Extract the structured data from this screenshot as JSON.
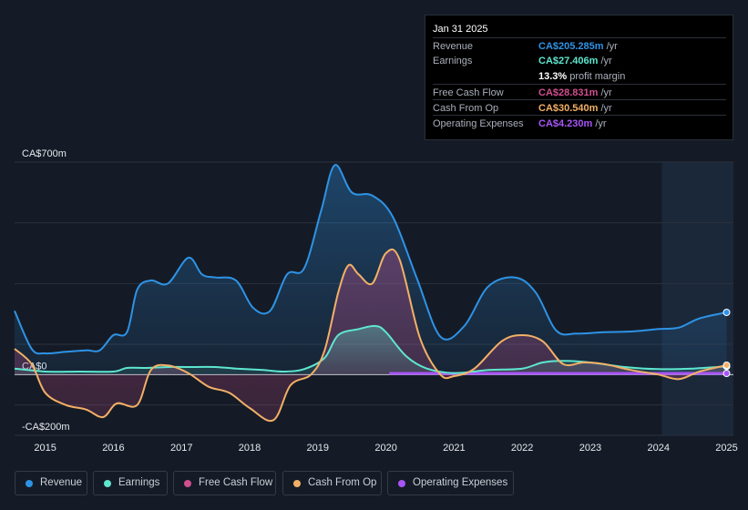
{
  "tooltip": {
    "date": "Jan 31 2025",
    "rows": [
      {
        "label": "Revenue",
        "value": "CA$205.285m",
        "unit": "/yr",
        "color": "#2e93e6"
      },
      {
        "label": "Earnings",
        "value": "CA$27.406m",
        "unit": "/yr",
        "color": "#5ee6cf"
      },
      {
        "label": "Free Cash Flow",
        "value": "CA$28.831m",
        "unit": "/yr",
        "color": "#d14f8f"
      },
      {
        "label": "Cash From Op",
        "value": "CA$30.540m",
        "unit": "/yr",
        "color": "#f2b066"
      },
      {
        "label": "Operating Expenses",
        "value": "CA$4.230m",
        "unit": "/yr",
        "color": "#a855f7"
      }
    ],
    "margin_value": "13.3%",
    "margin_label": "profit margin"
  },
  "legend": [
    {
      "label": "Revenue",
      "color": "#2e93e6"
    },
    {
      "label": "Earnings",
      "color": "#5ee6cf"
    },
    {
      "label": "Free Cash Flow",
      "color": "#d14f8f"
    },
    {
      "label": "Cash From Op",
      "color": "#f2b066"
    },
    {
      "label": "Operating Expenses",
      "color": "#a855f7"
    }
  ],
  "chart_data": {
    "type": "line",
    "title": "",
    "xlabel": "",
    "ylabel": "",
    "y_tick_labels": [
      "CA$700m",
      "CA$0",
      "-CA$200m"
    ],
    "x_tick_labels": [
      "2015",
      "2016",
      "2017",
      "2018",
      "2019",
      "2020",
      "2021",
      "2022",
      "2023",
      "2024",
      "2025"
    ],
    "xlim": [
      2014.55,
      2025.1
    ],
    "ylim": [
      -200,
      700
    ],
    "highlight_start": 2024.05,
    "series": [
      {
        "name": "Revenue",
        "color": "#2e93e6",
        "x": [
          2014.55,
          2014.8,
          2015.0,
          2015.3,
          2015.6,
          2015.8,
          2016.0,
          2016.2,
          2016.35,
          2016.55,
          2016.8,
          2017.1,
          2017.3,
          2017.5,
          2017.8,
          2018.05,
          2018.3,
          2018.55,
          2018.8,
          2019.05,
          2019.25,
          2019.5,
          2019.8,
          2020.1,
          2020.45,
          2020.8,
          2021.15,
          2021.5,
          2021.9,
          2022.2,
          2022.5,
          2022.8,
          2023.2,
          2023.6,
          2024.0,
          2024.3,
          2024.6,
          2025.0
        ],
        "y": [
          210,
          85,
          70,
          75,
          80,
          80,
          130,
          140,
          280,
          310,
          300,
          385,
          330,
          320,
          310,
          220,
          210,
          330,
          350,
          540,
          690,
          600,
          590,
          520,
          320,
          125,
          160,
          290,
          320,
          270,
          145,
          135,
          140,
          142,
          150,
          155,
          185,
          205
        ]
      },
      {
        "name": "Earnings",
        "color": "#5ee6cf",
        "x": [
          2014.55,
          2015.0,
          2015.5,
          2016.0,
          2016.2,
          2016.5,
          2016.8,
          2017.2,
          2017.5,
          2017.8,
          2018.2,
          2018.5,
          2018.8,
          2019.1,
          2019.3,
          2019.6,
          2019.85,
          2020.0,
          2020.3,
          2020.6,
          2021.0,
          2021.5,
          2022.0,
          2022.3,
          2022.6,
          2023.0,
          2023.5,
          2024.0,
          2024.5,
          2025.0
        ],
        "y": [
          20,
          10,
          10,
          10,
          22,
          22,
          25,
          25,
          25,
          20,
          15,
          10,
          18,
          55,
          130,
          150,
          160,
          140,
          60,
          20,
          5,
          15,
          20,
          40,
          45,
          40,
          25,
          18,
          20,
          27
        ]
      },
      {
        "name": "Free Cash Flow",
        "color": "#d14f8f",
        "fill_only": true,
        "x": [
          2014.55,
          2014.8,
          2015.0,
          2015.3,
          2015.6,
          2015.85,
          2016.05,
          2016.35,
          2016.55,
          2016.8,
          2017.1,
          2017.4,
          2017.7,
          2018.0,
          2018.35,
          2018.6,
          2018.9,
          2019.1,
          2019.3,
          2019.45,
          2019.6,
          2019.8,
          2020.0,
          2020.2,
          2020.5,
          2020.8,
          2021.0,
          2021.3,
          2021.7,
          2022.0,
          2022.3,
          2022.6,
          2022.9,
          2023.2,
          2023.6,
          2024.0,
          2024.3,
          2024.6,
          2025.0
        ],
        "y": [
          80,
          30,
          -60,
          -100,
          -115,
          -140,
          -95,
          -100,
          10,
          30,
          5,
          -40,
          -60,
          -110,
          -150,
          -35,
          0,
          80,
          270,
          360,
          330,
          300,
          400,
          380,
          120,
          0,
          -5,
          20,
          110,
          130,
          110,
          35,
          40,
          35,
          15,
          0,
          -15,
          10,
          29
        ]
      },
      {
        "name": "Cash From Op",
        "color": "#f2b066",
        "x": [
          2014.55,
          2014.8,
          2015.0,
          2015.3,
          2015.6,
          2015.85,
          2016.05,
          2016.35,
          2016.55,
          2016.8,
          2017.1,
          2017.4,
          2017.7,
          2018.0,
          2018.35,
          2018.6,
          2018.9,
          2019.1,
          2019.3,
          2019.45,
          2019.6,
          2019.8,
          2020.0,
          2020.2,
          2020.5,
          2020.8,
          2021.0,
          2021.3,
          2021.7,
          2022.0,
          2022.3,
          2022.6,
          2022.9,
          2023.2,
          2023.6,
          2024.0,
          2024.3,
          2024.6,
          2025.0
        ],
        "y": [
          85,
          35,
          -60,
          -100,
          -115,
          -140,
          -95,
          -100,
          15,
          30,
          5,
          -40,
          -60,
          -110,
          -150,
          -35,
          0,
          80,
          270,
          360,
          330,
          300,
          400,
          380,
          120,
          0,
          -5,
          20,
          110,
          130,
          110,
          35,
          40,
          35,
          15,
          0,
          -15,
          10,
          31
        ]
      },
      {
        "name": "Operating Expenses",
        "color": "#a855f7",
        "x": [
          2020.05,
          2021.0,
          2022.0,
          2023.0,
          2024.0,
          2025.0
        ],
        "y": [
          4,
          4,
          4,
          4,
          4,
          4
        ]
      }
    ]
  }
}
